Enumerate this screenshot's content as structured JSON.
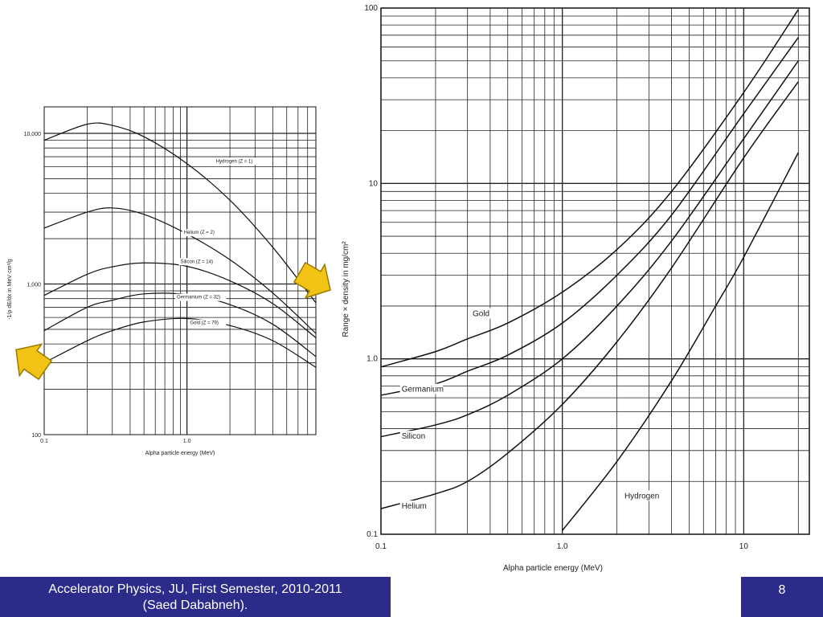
{
  "colors": {
    "footer_bg": "#2b2b8a",
    "footer_text": "#ffffff",
    "arrow_fill": "#f2c314",
    "arrow_edge": "#9a7a00",
    "curve": "#111111",
    "grid": "#222222"
  },
  "footer": {
    "left_line1": "Accelerator Physics, JU, First Semester, 2010-2011",
    "left_line2": "(Saed Dababneh).",
    "page_number": "8"
  },
  "arrows": [
    "arrow-icon",
    "arrow-icon"
  ],
  "chart_data": [
    {
      "type": "line",
      "xlabel": "Alpha particle energy (MeV)",
      "ylabel": "-1/ρ dE/dx in MeV·cm²/g",
      "xscale": "log",
      "yscale": "log",
      "xlim": [
        0.1,
        8
      ],
      "ylim": [
        100,
        15000
      ],
      "x_ticks": [
        "0.1",
        "1.0"
      ],
      "y_ticks": [
        "100",
        "1,000",
        "10,000"
      ],
      "grid": true,
      "series": [
        {
          "name": "Hydrogen (Z = 1)",
          "x": [
            0.1,
            0.2,
            0.3,
            0.5,
            1.0,
            2.0,
            4.0,
            8.0
          ],
          "y": [
            9000,
            11500,
            11300,
            9500,
            6300,
            3600,
            1750,
            750
          ]
        },
        {
          "name": "Helium (Z = 2)",
          "x": [
            0.1,
            0.2,
            0.3,
            0.5,
            1.0,
            2.0,
            4.0,
            8.0
          ],
          "y": [
            2350,
            3000,
            3200,
            2900,
            2150,
            1450,
            870,
            470
          ]
        },
        {
          "name": "Silicon (Z = 14)",
          "x": [
            0.1,
            0.2,
            0.3,
            0.5,
            1.0,
            2.0,
            4.0,
            8.0
          ],
          "y": [
            840,
            1160,
            1300,
            1380,
            1310,
            1050,
            740,
            440
          ]
        },
        {
          "name": "Germanium (Z = 32)",
          "x": [
            0.1,
            0.2,
            0.3,
            0.5,
            1.0,
            2.0,
            4.0,
            8.0
          ],
          "y": [
            490,
            700,
            780,
            860,
            850,
            730,
            540,
            330
          ]
        },
        {
          "name": "Gold (Z = 79)",
          "x": [
            0.1,
            0.2,
            0.3,
            0.5,
            1.0,
            2.0,
            4.0,
            8.0
          ],
          "y": [
            300,
            420,
            490,
            560,
            590,
            530,
            420,
            280
          ]
        }
      ]
    },
    {
      "type": "line",
      "xlabel": "Alpha particle energy (MeV)",
      "ylabel": "Range × density in mg/cm²",
      "xscale": "log",
      "yscale": "log",
      "xlim": [
        0.1,
        23
      ],
      "ylim": [
        0.1,
        100
      ],
      "x_ticks": [
        "0.1",
        "1.0",
        "10"
      ],
      "y_ticks": [
        "0.1",
        "1.0",
        "10",
        "100"
      ],
      "grid": true,
      "series": [
        {
          "name": "Hydrogen",
          "x": [
            1.0,
            2.0,
            4.0,
            7.0,
            10.0,
            20.0
          ],
          "y": [
            0.105,
            0.26,
            0.75,
            2.0,
            3.8,
            15
          ]
        },
        {
          "name": "Helium",
          "x": [
            0.1,
            0.2,
            0.3,
            0.5,
            1.0,
            2.0,
            4.0,
            10.0,
            20.0
          ],
          "y": [
            0.14,
            0.17,
            0.2,
            0.29,
            0.55,
            1.25,
            3.3,
            14,
            38
          ]
        },
        {
          "name": "Silicon",
          "x": [
            0.1,
            0.2,
            0.3,
            0.5,
            1.0,
            2.0,
            4.0,
            10.0,
            20.0
          ],
          "y": [
            0.36,
            0.42,
            0.48,
            0.62,
            1.0,
            2.0,
            4.7,
            18,
            50
          ]
        },
        {
          "name": "Germanium",
          "x": [
            0.1,
            0.2,
            0.3,
            0.5,
            1.0,
            2.0,
            4.0,
            10.0,
            20.0
          ],
          "y": [
            0.62,
            0.72,
            0.85,
            1.05,
            1.6,
            3.0,
            6.6,
            25,
            68
          ]
        },
        {
          "name": "Gold",
          "x": [
            0.1,
            0.2,
            0.3,
            0.5,
            1.0,
            2.0,
            4.0,
            10.0,
            20.0
          ],
          "y": [
            0.9,
            1.1,
            1.3,
            1.6,
            2.4,
            4.2,
            9.0,
            33,
            98
          ]
        }
      ]
    }
  ]
}
